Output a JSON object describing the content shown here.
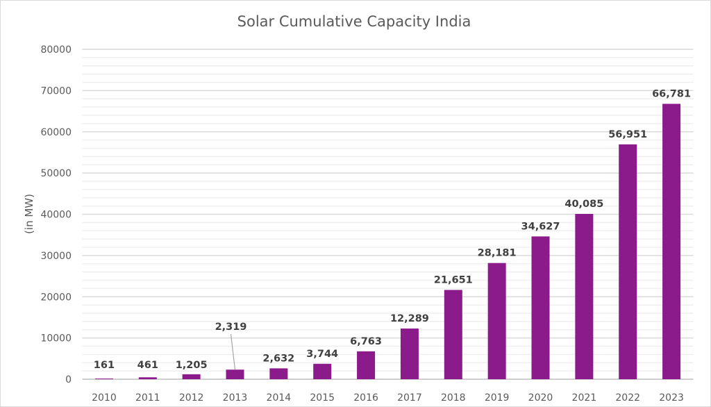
{
  "chart_data": {
    "type": "bar",
    "title": "Solar Cumulative Capacity India",
    "xlabel": "",
    "ylabel": "(in MW)",
    "ylim": [
      0,
      80000
    ],
    "yticks": [
      0,
      10000,
      20000,
      30000,
      40000,
      50000,
      60000,
      70000,
      80000
    ],
    "minor_grid_step": 2000,
    "grid": true,
    "bar_color": "#8b1a8b",
    "categories": [
      "2010",
      "2011",
      "2012",
      "2013",
      "2014",
      "2015",
      "2016",
      "2017",
      "2018",
      "2019",
      "2020",
      "2021",
      "2022",
      "2023"
    ],
    "values": [
      161,
      461,
      1205,
      2319,
      2632,
      3744,
      6763,
      12289,
      21651,
      28181,
      34627,
      40085,
      56951,
      66781
    ],
    "data_labels": [
      "161",
      "461",
      "1,205",
      "2,319",
      "2,632",
      "3,744",
      "6,763",
      "12,289",
      "21,651",
      "28,181",
      "34,627",
      "40,085",
      "56,951",
      "66,781"
    ]
  }
}
